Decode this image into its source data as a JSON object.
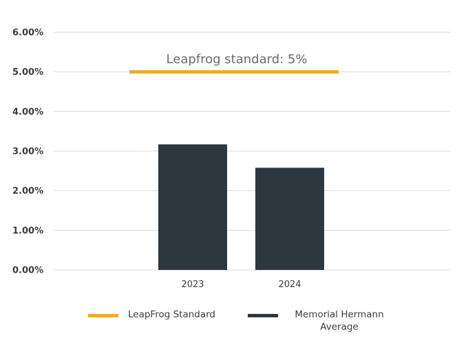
{
  "chart_data": {
    "type": "bar",
    "categories": [
      "2023",
      "2024"
    ],
    "series": [
      {
        "name": "Memorial Hermann Average",
        "values": [
          3.17,
          2.58
        ],
        "color": "#2d3740"
      }
    ],
    "reference_line": {
      "name": "LeapFrog Standard",
      "value": 5.0,
      "color": "#f0a830",
      "annotation": "Leapfrog standard: 5%"
    },
    "ylim": [
      0,
      6
    ],
    "yticks": [
      0,
      1,
      2,
      3,
      4,
      5,
      6
    ],
    "ytick_labels": [
      "0.00%",
      "1.00%",
      "2.00%",
      "3.00%",
      "4.00%",
      "5.00%",
      "6.00%"
    ],
    "grid": true,
    "legend_position": "bottom",
    "legend": [
      {
        "label": "LeapFrog Standard",
        "color": "#f0a830"
      },
      {
        "label": "Memorial Hermann\nAverage",
        "color": "#2d3740"
      }
    ],
    "title": "",
    "xlabel": "",
    "ylabel": ""
  }
}
